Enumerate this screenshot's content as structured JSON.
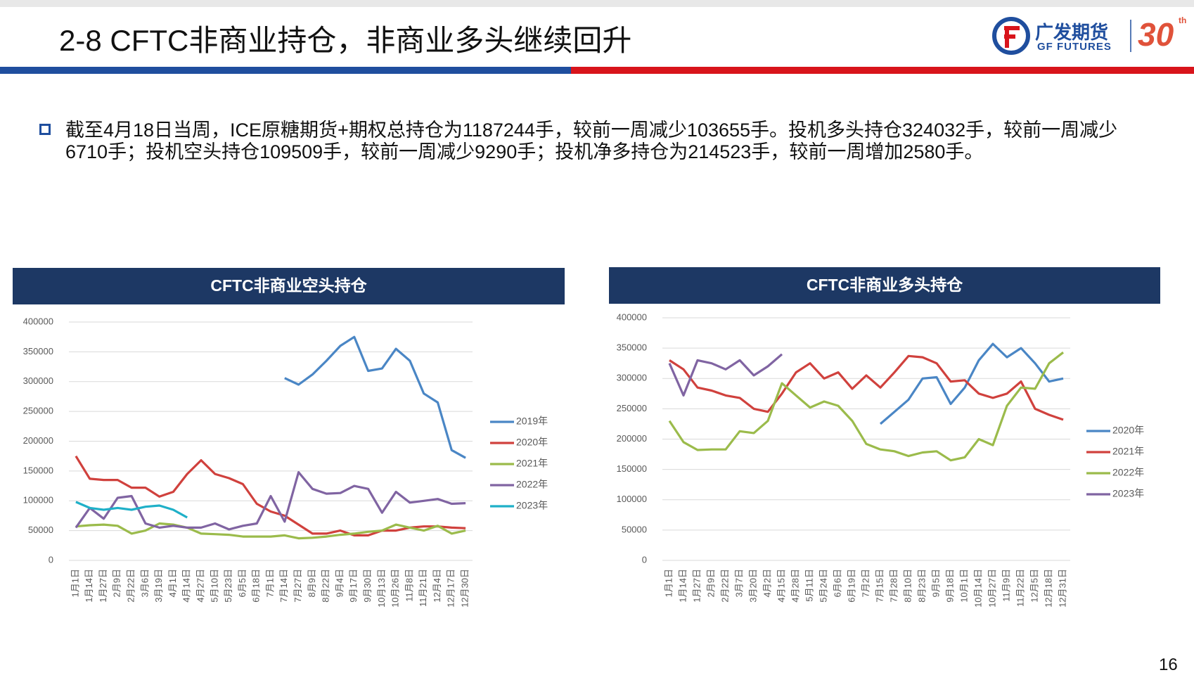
{
  "header": {
    "title": "2-8 CFTC非商业持仓，非商业多头继续回升",
    "logo_name": "广发期货",
    "logo_en": "GF FUTURES",
    "logo_anniversary": "30",
    "logo_suffix": "th"
  },
  "bullet": "截至4月18日当周，ICE原糖期货+期权总持仓为1187244手，较前一周减少103655手。投机多头持仓324032手，较前一周减少6710手；投机空头持仓109509手，较前一周减少9290手；投机净多持仓为214523手，较前一周增加2580手。",
  "page_number": "16",
  "chart_data": [
    {
      "type": "line",
      "title": "CFTC非商业空头持仓",
      "categories": [
        "1月1日",
        "1月14日",
        "1月27日",
        "2月9日",
        "2月22日",
        "3月6日",
        "3月19日",
        "4月1日",
        "4月14日",
        "4月27日",
        "5月10日",
        "5月23日",
        "6月5日",
        "6月18日",
        "7月1日",
        "7月14日",
        "7月27日",
        "8月9日",
        "8月22日",
        "9月4日",
        "9月17日",
        "9月30日",
        "10月13日",
        "10月26日",
        "11月8日",
        "11月21日",
        "12月4日",
        "12月17日",
        "12月30日"
      ],
      "ylim": [
        0,
        400000
      ],
      "yticks": [
        0,
        50000,
        100000,
        150000,
        200000,
        250000,
        300000,
        350000,
        400000
      ],
      "grid": true,
      "legend": "right",
      "series": [
        {
          "name": "2019年",
          "color": "#4a86c5",
          "values": [
            null,
            null,
            null,
            null,
            null,
            null,
            null,
            null,
            null,
            null,
            null,
            null,
            null,
            null,
            null,
            306000,
            295000,
            312000,
            335000,
            360000,
            375000,
            318000,
            322000,
            355000,
            335000,
            280000,
            265000,
            185000,
            172000
          ]
        },
        {
          "name": "2020年",
          "color": "#d0413d",
          "values": [
            175000,
            137000,
            135000,
            135000,
            122000,
            122000,
            107000,
            115000,
            145000,
            168000,
            145000,
            138000,
            128000,
            95000,
            82000,
            75000,
            60000,
            45000,
            45000,
            50000,
            42000,
            42000,
            50000,
            50000,
            55000,
            57000,
            57000,
            55000,
            54000
          ]
        },
        {
          "name": "2021年",
          "color": "#9bbb4b",
          "values": [
            57000,
            59000,
            60000,
            58000,
            45000,
            50000,
            62000,
            60000,
            55000,
            45000,
            44000,
            43000,
            40000,
            40000,
            40000,
            42000,
            37000,
            38000,
            40000,
            43000,
            45000,
            48000,
            50000,
            60000,
            55000,
            50000,
            58000,
            45000,
            50000
          ]
        },
        {
          "name": "2022年",
          "color": "#8064a2",
          "values": [
            55000,
            88000,
            70000,
            105000,
            108000,
            62000,
            55000,
            58000,
            55000,
            55000,
            62000,
            52000,
            58000,
            62000,
            108000,
            65000,
            148000,
            120000,
            112000,
            113000,
            125000,
            120000,
            80000,
            115000,
            97000,
            100000,
            103000,
            95000,
            96000
          ]
        },
        {
          "name": "2023年",
          "color": "#1fb0c8",
          "values": [
            98000,
            88000,
            85000,
            88000,
            85000,
            90000,
            92000,
            85000,
            72000,
            null,
            null,
            null,
            null,
            null,
            null,
            null,
            null,
            null,
            null,
            null,
            null,
            null,
            null,
            null,
            null,
            null,
            null,
            null,
            null
          ]
        }
      ]
    },
    {
      "type": "line",
      "title": "CFTC非商业多头持仓",
      "categories": [
        "1月1日",
        "1月14日",
        "1月27日",
        "2月9日",
        "2月22日",
        "3月7日",
        "3月20日",
        "4月2日",
        "4月15日",
        "4月28日",
        "5月11日",
        "5月24日",
        "6月6日",
        "6月19日",
        "7月2日",
        "7月15日",
        "7月28日",
        "8月10日",
        "8月23日",
        "9月5日",
        "9月18日",
        "10月1日",
        "10月14日",
        "10月27日",
        "11月9日",
        "11月22日",
        "12月5日",
        "12月18日",
        "12月31日"
      ],
      "ylim": [
        0,
        400000
      ],
      "yticks": [
        0,
        50000,
        100000,
        150000,
        200000,
        250000,
        300000,
        350000,
        400000
      ],
      "grid": true,
      "legend": "right",
      "series": [
        {
          "name": "2020年",
          "color": "#4a86c5",
          "values": [
            null,
            null,
            null,
            null,
            null,
            null,
            null,
            null,
            null,
            null,
            null,
            null,
            null,
            null,
            null,
            225000,
            245000,
            265000,
            300000,
            302000,
            258000,
            285000,
            330000,
            357000,
            335000,
            350000,
            325000,
            295000,
            300000
          ]
        },
        {
          "name": "2021年",
          "color": "#d0413d",
          "values": [
            330000,
            315000,
            285000,
            280000,
            272000,
            268000,
            250000,
            245000,
            275000,
            310000,
            325000,
            300000,
            310000,
            283000,
            305000,
            285000,
            310000,
            337000,
            335000,
            325000,
            295000,
            297000,
            275000,
            268000,
            275000,
            295000,
            250000,
            240000,
            232000
          ]
        },
        {
          "name": "2022年",
          "color": "#9bbb4b",
          "values": [
            230000,
            195000,
            182000,
            183000,
            183000,
            213000,
            210000,
            230000,
            292000,
            272000,
            252000,
            262000,
            255000,
            230000,
            192000,
            183000,
            180000,
            172000,
            178000,
            180000,
            165000,
            170000,
            200000,
            190000,
            255000,
            285000,
            283000,
            325000,
            343000
          ]
        },
        {
          "name": "2023年",
          "color": "#8064a2",
          "values": [
            325000,
            272000,
            330000,
            325000,
            315000,
            330000,
            305000,
            320000,
            340000,
            null,
            null,
            null,
            null,
            null,
            null,
            null,
            null,
            null,
            null,
            null,
            null,
            null,
            null,
            null,
            null,
            null,
            null,
            null,
            null
          ]
        }
      ]
    }
  ]
}
